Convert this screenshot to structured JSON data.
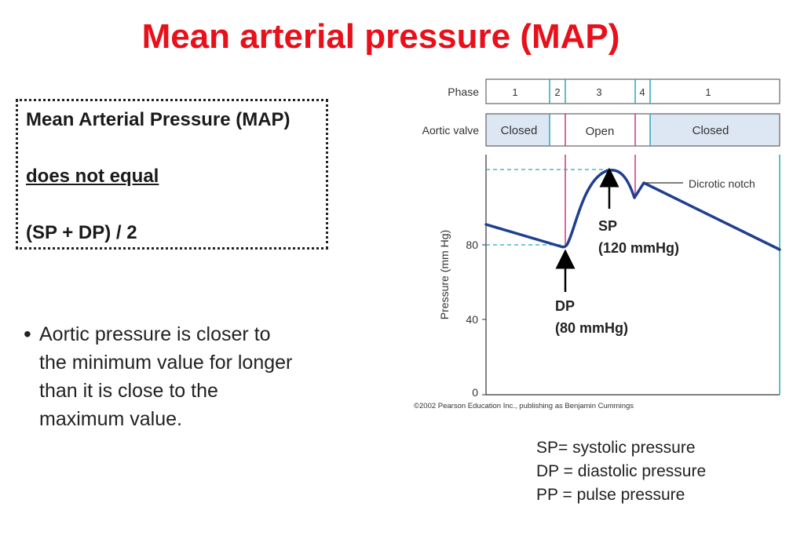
{
  "slide": {
    "title": "Mean arterial pressure (MAP)"
  },
  "definition_box": {
    "line1": "Mean Arterial Pressure (MAP)",
    "line2": "does not equal",
    "line3": "(SP + DP) / 2"
  },
  "bullet": {
    "lines": [
      "Aortic pressure is closer to",
      "the minimum value for longer",
      "than it is close to the",
      "maximum value."
    ]
  },
  "legend": {
    "sp": "SP= systolic pressure",
    "dp": "DP = diastolic pressure",
    "pp": "PP = pulse pressure"
  },
  "diagram": {
    "phase_label": "Phase",
    "phases": [
      "1",
      "2",
      "3",
      "4",
      "1"
    ],
    "valve_label": "Aortic valve",
    "valve_states": [
      "Closed",
      "Open",
      "Closed"
    ],
    "y_axis_label": "Pressure (mm Hg)",
    "y_ticks": [
      "80",
      "40",
      "0"
    ],
    "dicrotic_notch_label": "Dicrotic notch",
    "sp_label": "SP",
    "sp_value": "(120 mmHg)",
    "dp_label": "DP",
    "dp_value": "(80 mmHg)",
    "copyright": "©2002 Pearson Education Inc., publishing as Benjamin Cummings",
    "colors": {
      "curve": "#1f3f8f",
      "valve_event": "#d0347a",
      "guide": "#2aa8b8",
      "closed_fill": "#dde6f3"
    }
  }
}
